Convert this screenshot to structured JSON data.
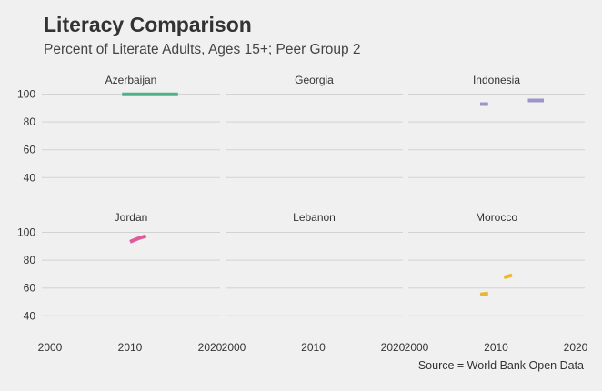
{
  "chart_data": {
    "type": "line",
    "title": "Literacy Comparison",
    "subtitle": "Percent of Literate Adults, Ages 15+; Peer Group 2",
    "caption": "Source = World Bank Open Data",
    "facet_layout": "2 rows x 3 columns",
    "x_ticks": [
      2000,
      2010,
      2020
    ],
    "y_ticks": [
      40,
      60,
      80,
      100
    ],
    "xlim": [
      2000,
      2020
    ],
    "ylim": [
      28,
      104
    ],
    "grid": "horizontal",
    "facets": [
      {
        "name": "Azerbaijan",
        "color": "#4fb286",
        "segments": [
          {
            "x": [
              2009,
              2016
            ],
            "y": [
              99.8,
              99.8
            ]
          }
        ]
      },
      {
        "name": "Georgia",
        "color": "#666666",
        "segments": []
      },
      {
        "name": "Indonesia",
        "color": "#9b95c9",
        "segments": [
          {
            "x": [
              2008,
              2009
            ],
            "y": [
              92.8,
              92.8
            ]
          },
          {
            "x": [
              2014,
              2016
            ],
            "y": [
              95.4,
              95.4
            ]
          }
        ]
      },
      {
        "name": "Jordan",
        "color": "#e05a9d",
        "segments": [
          {
            "x": [
              2010,
              2011,
              2012
            ],
            "y": [
              93.2,
              95.6,
              97.4
            ]
          }
        ]
      },
      {
        "name": "Lebanon",
        "color": "#666666",
        "segments": []
      },
      {
        "name": "Morocco",
        "color": "#e8b830",
        "segments": [
          {
            "x": [
              2008,
              2009
            ],
            "y": [
              55.3,
              56.1
            ]
          },
          {
            "x": [
              2011,
              2012
            ],
            "y": [
              67.6,
              69.2
            ]
          }
        ]
      }
    ]
  }
}
